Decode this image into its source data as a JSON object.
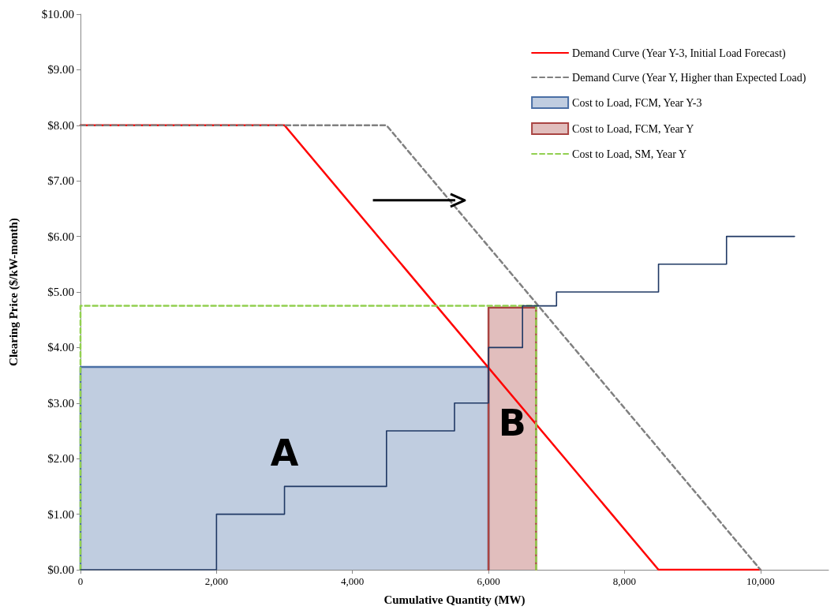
{
  "chart_data": {
    "type": "line",
    "xlabel": "Cumulative Quantity (MW)",
    "ylabel": "Clearing Price ($/kW-month)",
    "xlim": [
      0,
      11000
    ],
    "xticks": [
      {
        "value": 0,
        "label": "0"
      },
      {
        "value": 2000,
        "label": "2,000"
      },
      {
        "value": 4000,
        "label": "4,000"
      },
      {
        "value": 6000,
        "label": "6,000"
      },
      {
        "value": 8000,
        "label": "8,000"
      },
      {
        "value": 10000,
        "label": "10,000"
      }
    ],
    "ylim": [
      0,
      10
    ],
    "yticks": [
      {
        "value": 0,
        "label": "$0.00"
      },
      {
        "value": 1,
        "label": "$1.00"
      },
      {
        "value": 2,
        "label": "$2.00"
      },
      {
        "value": 3,
        "label": "$3.00"
      },
      {
        "value": 4,
        "label": "$4.00"
      },
      {
        "value": 5,
        "label": "$5.00"
      },
      {
        "value": 6,
        "label": "$6.00"
      },
      {
        "value": 7,
        "label": "$7.00"
      },
      {
        "value": 8,
        "label": "$8.00"
      },
      {
        "value": 9,
        "label": "$9.00"
      },
      {
        "value": 10,
        "label": "$10.00"
      }
    ],
    "grid": false,
    "legend": "top right",
    "marker": "none",
    "series": [
      {
        "name": "Demand Curve (Year Y-3, Initial Load Forecast)",
        "line_style": "solid",
        "color": "#ff0000",
        "x": [
          0,
          3000,
          8500,
          10000
        ],
        "values": [
          8,
          8,
          0,
          0
        ]
      },
      {
        "name": "Demand Curve (Year Y, Higher than Expected Load)",
        "line_style": "dashed",
        "color": "#808080",
        "x": [
          0,
          4500,
          10000
        ],
        "values": [
          8,
          8,
          0
        ]
      },
      {
        "name": "Cost to Load, FCM, Year Y-3",
        "type": "area",
        "line_style": "solid",
        "color": "#4a6fa5",
        "x": [
          0,
          0,
          6000,
          6000
        ],
        "values": [
          0,
          3.65,
          3.65,
          0
        ]
      },
      {
        "name": "Cost to Load, FCM, Year Y",
        "type": "area",
        "line_style": "solid",
        "color": "#a94442",
        "x": [
          6000,
          6000,
          6700,
          6700
        ],
        "values": [
          0,
          4.72,
          4.72,
          0
        ]
      },
      {
        "name": "Cost to Load, SM, Year Y",
        "line_style": "dashed",
        "color": "#92d050",
        "x": [
          0,
          0,
          6700,
          6700
        ],
        "values": [
          0,
          4.75,
          4.75,
          0
        ]
      },
      {
        "type": "step",
        "line_style": "solid",
        "color": "#1f3864",
        "x": [
          0,
          2000,
          3000,
          4500,
          5500,
          6000,
          6500,
          7000,
          8500,
          9500,
          10500
        ],
        "values": [
          0,
          1,
          1.5,
          2.5,
          3,
          4,
          4.75,
          5,
          5.5,
          6,
          6
        ]
      }
    ],
    "annotations": [
      "A",
      "B"
    ]
  }
}
